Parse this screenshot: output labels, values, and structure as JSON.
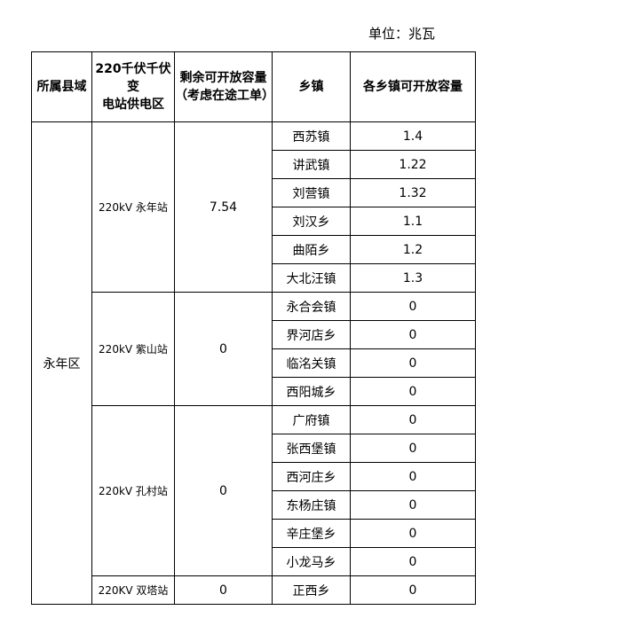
{
  "unit_label": "单位：兆瓦",
  "headers": [
    "所属县域",
    "220千伏千伏变电站供电区",
    "剩余可开放容量（考虑在途工单）",
    "乡镇",
    "各乡镇可开放容量"
  ],
  "header_lines": {
    "col2a": "220千伏千伏变",
    "col2b": "电站供电区",
    "col3a": "剩余可开放容量",
    "col3b": "（考虑在途工单）"
  },
  "county": "永年区",
  "stations": [
    {
      "name": "220kV 永年站",
      "remaining": "7.54",
      "towns": [
        {
          "name": "西苏镇",
          "capacity": "1.4"
        },
        {
          "name": "讲武镇",
          "capacity": "1.22"
        },
        {
          "name": "刘营镇",
          "capacity": "1.32"
        },
        {
          "name": "刘汉乡",
          "capacity": "1.1"
        },
        {
          "name": "曲陌乡",
          "capacity": "1.2"
        },
        {
          "name": "大北汪镇",
          "capacity": "1.3"
        }
      ]
    },
    {
      "name": "220kV 紫山站",
      "remaining": "0",
      "towns": [
        {
          "name": "永合会镇",
          "capacity": "0"
        },
        {
          "name": "界河店乡",
          "capacity": "0"
        },
        {
          "name": "临洺关镇",
          "capacity": "0"
        },
        {
          "name": "西阳城乡",
          "capacity": "0"
        }
      ]
    },
    {
      "name": "220kV 孔村站",
      "remaining": "0",
      "towns": [
        {
          "name": "广府镇",
          "capacity": "0"
        },
        {
          "name": "张西堡镇",
          "capacity": "0"
        },
        {
          "name": "西河庄乡",
          "capacity": "0"
        },
        {
          "name": "东杨庄镇",
          "capacity": "0"
        },
        {
          "name": "辛庄堡乡",
          "capacity": "0"
        },
        {
          "name": "小龙马乡",
          "capacity": "0"
        }
      ]
    },
    {
      "name": "220KV 双塔站",
      "remaining": "0",
      "towns": [
        {
          "name": "正西乡",
          "capacity": "0"
        }
      ]
    }
  ]
}
